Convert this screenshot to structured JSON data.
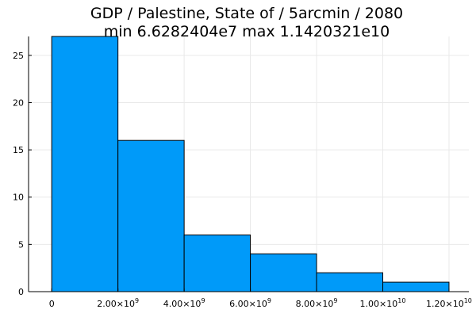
{
  "title_line1": "GDP / Palestine, State of / 5arcmin / 2080",
  "title_line2": "min 6.6282404e7  max 1.1420321e10",
  "colors": {
    "bar": "#009af9",
    "grid": "#e9e9e9",
    "axis": "#000000"
  },
  "chart_data": {
    "type": "bar",
    "title": "GDP / Palestine, State of / 5arcmin / 2080\nmin 6.6282404e7  max 1.1420321e10",
    "xlabel": "",
    "ylabel": "",
    "bins": [
      {
        "x0": 0,
        "x1": 2000000000,
        "count": 27
      },
      {
        "x0": 2000000000,
        "x1": 4000000000,
        "count": 16
      },
      {
        "x0": 4000000000,
        "x1": 6000000000,
        "count": 6
      },
      {
        "x0": 6000000000,
        "x1": 8000000000,
        "count": 4
      },
      {
        "x0": 8000000000,
        "x1": 10000000000,
        "count": 2
      },
      {
        "x0": 10000000000,
        "x1": 12000000000,
        "count": 1
      }
    ],
    "xlim": [
      -700000000,
      12600000000
    ],
    "ylim": [
      0,
      27
    ],
    "x_ticks": [
      {
        "value": 0,
        "mant": "0",
        "exp": ""
      },
      {
        "value": 2000000000,
        "mant": "2.00×10",
        "exp": "9"
      },
      {
        "value": 4000000000,
        "mant": "4.00×10",
        "exp": "9"
      },
      {
        "value": 6000000000,
        "mant": "6.00×10",
        "exp": "9"
      },
      {
        "value": 8000000000,
        "mant": "8.00×10",
        "exp": "9"
      },
      {
        "value": 10000000000,
        "mant": "1.00×10",
        "exp": "10"
      },
      {
        "value": 12000000000,
        "mant": "1.20×10",
        "exp": "10"
      }
    ],
    "y_ticks": [
      {
        "value": 0,
        "label": "0"
      },
      {
        "value": 5,
        "label": "5"
      },
      {
        "value": 10,
        "label": "10"
      },
      {
        "value": 15,
        "label": "15"
      },
      {
        "value": 20,
        "label": "20"
      },
      {
        "value": 25,
        "label": "25"
      }
    ],
    "grid": true,
    "legend": "none"
  }
}
